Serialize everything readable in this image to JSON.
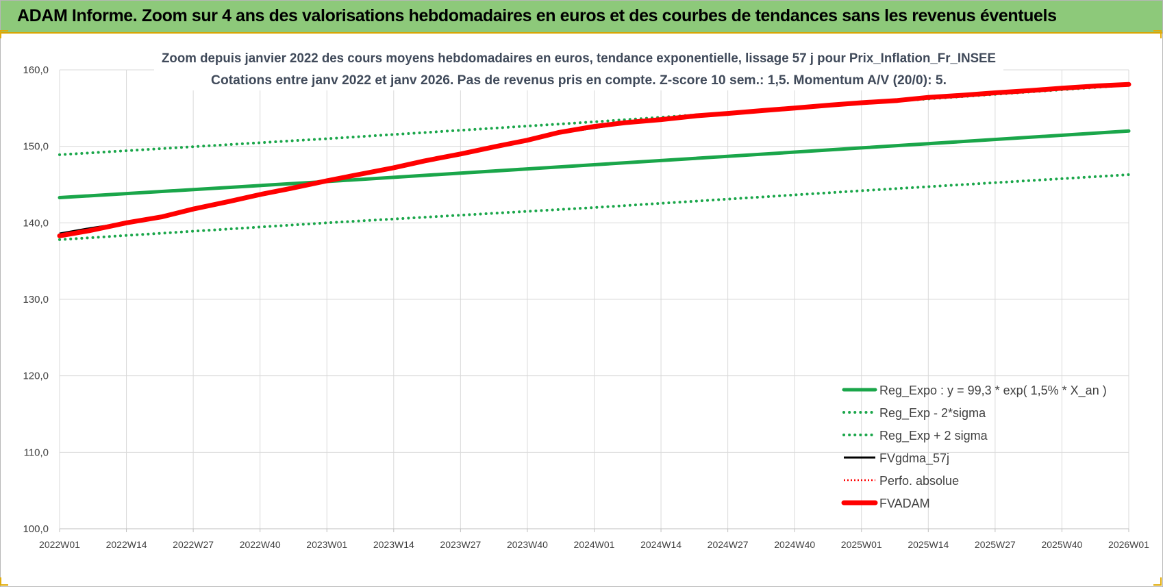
{
  "banner": {
    "title": "ADAM Informe. Zoom sur 4 ans des valorisations hebdomadaires en euros et des courbes de tendances sans les revenus éventuels"
  },
  "colors": {
    "banner_bg": "#8dc97a",
    "reg_green": "#1aa64a",
    "black": "#000000",
    "red": "#ff0000",
    "grid": "#d9d9d9",
    "axis_text": "#404040",
    "title_text": "#404a5a"
  },
  "chart_data": {
    "type": "line",
    "title": "Zoom depuis janvier 2022 des cours moyens hebdomadaires en euros, tendance exponentielle, lissage 57 j pour Prix_Inflation_Fr_INSEE",
    "subtitle": "Cotations entre janv 2022 et janv 2026. Pas de revenus pris en compte. Z-score 10 sem.: 1,5. Momentum A/V (20/0): 5.",
    "xlabel": "",
    "ylabel": "",
    "x_ticks": [
      "2022W01",
      "2022W14",
      "2022W27",
      "2022W40",
      "2023W01",
      "2023W14",
      "2023W27",
      "2023W40",
      "2024W01",
      "2024W14",
      "2024W27",
      "2024W40",
      "2025W01",
      "2025W14",
      "2025W27",
      "2025W40",
      "2026W01"
    ],
    "x_tick_weeks": [
      0,
      13,
      26,
      39,
      52,
      65,
      78,
      91,
      104,
      117,
      130,
      143,
      156,
      169,
      182,
      195,
      208
    ],
    "y_ticks": [
      "100,0",
      "110,0",
      "120,0",
      "130,0",
      "140,0",
      "150,0",
      "160,0"
    ],
    "ylim": [
      100,
      160
    ],
    "grid": true,
    "legend_position": "bottom-right",
    "series": [
      {
        "name": "Reg_Expo : y = 99,3 * exp( 1,5% *  X_an )",
        "style": "solid-thick",
        "color": "#1aa64a",
        "points": [
          [
            0,
            143.3
          ],
          [
            52,
            145.4
          ],
          [
            104,
            147.6
          ],
          [
            156,
            149.8
          ],
          [
            208,
            152.0
          ]
        ]
      },
      {
        "name": "Reg_Exp - 2*sigma",
        "style": "dotted",
        "color": "#1aa64a",
        "points": [
          [
            0,
            137.8
          ],
          [
            52,
            140.0
          ],
          [
            104,
            142.0
          ],
          [
            156,
            144.2
          ],
          [
            208,
            146.3
          ]
        ]
      },
      {
        "name": "Reg_Exp + 2 sigma",
        "style": "dotted",
        "color": "#1aa64a",
        "points": [
          [
            0,
            148.9
          ],
          [
            52,
            151.0
          ],
          [
            104,
            153.2
          ],
          [
            156,
            155.6
          ],
          [
            208,
            158.0
          ]
        ]
      },
      {
        "name": "FVgdma_57j",
        "style": "solid",
        "color": "#000000",
        "points": [
          [
            0,
            138.6
          ],
          [
            6,
            139.3
          ],
          [
            13,
            140.0
          ],
          [
            20,
            140.8
          ],
          [
            26,
            141.8
          ],
          [
            33,
            142.8
          ],
          [
            39,
            143.8
          ],
          [
            45,
            144.5
          ],
          [
            52,
            145.5
          ],
          [
            58,
            146.3
          ],
          [
            65,
            147.2
          ],
          [
            71,
            148.0
          ],
          [
            78,
            149.0
          ],
          [
            85,
            150.0
          ],
          [
            91,
            150.8
          ],
          [
            97,
            151.7
          ],
          [
            104,
            152.4
          ],
          [
            110,
            153.0
          ],
          [
            117,
            153.5
          ],
          [
            124,
            154.0
          ],
          [
            130,
            154.2
          ],
          [
            137,
            154.6
          ],
          [
            143,
            155.0
          ],
          [
            150,
            155.4
          ],
          [
            156,
            155.7
          ],
          [
            163,
            156.0
          ],
          [
            169,
            156.4
          ],
          [
            176,
            156.7
          ],
          [
            182,
            156.9
          ],
          [
            189,
            157.3
          ],
          [
            195,
            157.6
          ],
          [
            202,
            157.9
          ],
          [
            208,
            158.1
          ]
        ]
      },
      {
        "name": "Perfo. absolue",
        "style": "dotted",
        "color": "#ff0000",
        "points": [
          [
            0,
            138.3
          ],
          [
            6,
            139.0
          ],
          [
            13,
            140.0
          ],
          [
            20,
            140.8
          ],
          [
            26,
            141.8
          ],
          [
            33,
            142.8
          ],
          [
            39,
            143.7
          ],
          [
            45,
            144.5
          ],
          [
            52,
            145.5
          ],
          [
            58,
            146.3
          ],
          [
            65,
            147.2
          ],
          [
            71,
            148.1
          ],
          [
            78,
            149.0
          ],
          [
            85,
            150.0
          ],
          [
            91,
            150.8
          ],
          [
            97,
            151.8
          ],
          [
            104,
            152.6
          ],
          [
            110,
            153.1
          ],
          [
            117,
            153.5
          ],
          [
            124,
            154.0
          ],
          [
            130,
            154.3
          ],
          [
            137,
            154.7
          ],
          [
            143,
            155.0
          ],
          [
            150,
            155.4
          ],
          [
            156,
            155.7
          ],
          [
            163,
            156.0
          ],
          [
            169,
            156.4
          ],
          [
            176,
            156.7
          ],
          [
            182,
            157.0
          ],
          [
            189,
            157.3
          ],
          [
            195,
            157.6
          ],
          [
            202,
            157.9
          ],
          [
            208,
            158.1
          ]
        ]
      },
      {
        "name": "FVADAM",
        "style": "solid-thick",
        "color": "#ff0000",
        "points": [
          [
            0,
            138.3
          ],
          [
            6,
            139.0
          ],
          [
            13,
            140.0
          ],
          [
            20,
            140.8
          ],
          [
            26,
            141.8
          ],
          [
            33,
            142.8
          ],
          [
            39,
            143.7
          ],
          [
            45,
            144.5
          ],
          [
            52,
            145.5
          ],
          [
            58,
            146.3
          ],
          [
            65,
            147.2
          ],
          [
            71,
            148.1
          ],
          [
            78,
            149.0
          ],
          [
            85,
            150.0
          ],
          [
            91,
            150.8
          ],
          [
            97,
            151.8
          ],
          [
            104,
            152.6
          ],
          [
            110,
            153.1
          ],
          [
            117,
            153.5
          ],
          [
            124,
            154.0
          ],
          [
            130,
            154.3
          ],
          [
            137,
            154.7
          ],
          [
            143,
            155.0
          ],
          [
            150,
            155.4
          ],
          [
            156,
            155.7
          ],
          [
            163,
            156.0
          ],
          [
            169,
            156.4
          ],
          [
            176,
            156.7
          ],
          [
            182,
            157.0
          ],
          [
            189,
            157.3
          ],
          [
            195,
            157.6
          ],
          [
            202,
            157.9
          ],
          [
            208,
            158.1
          ]
        ]
      }
    ]
  }
}
